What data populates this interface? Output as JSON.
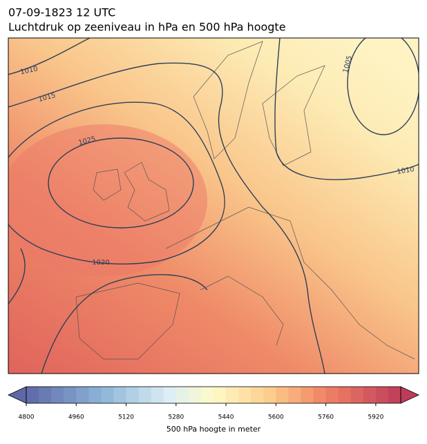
{
  "header": {
    "date": "07-09-1823 12 UTC",
    "title": "Luchtdruk op zeeniveau in hPa en 500 hPa hoogte"
  },
  "map": {
    "isobar_labels": [
      "1010",
      "1015",
      "1025",
      "1020",
      "1005",
      "1010"
    ]
  },
  "colorbar": {
    "label": "500 hPa hoogte in meter",
    "range": [
      4800,
      6000
    ],
    "ticks": [
      4800,
      4960,
      5120,
      5280,
      5440,
      5600,
      5760,
      5920
    ]
  }
}
